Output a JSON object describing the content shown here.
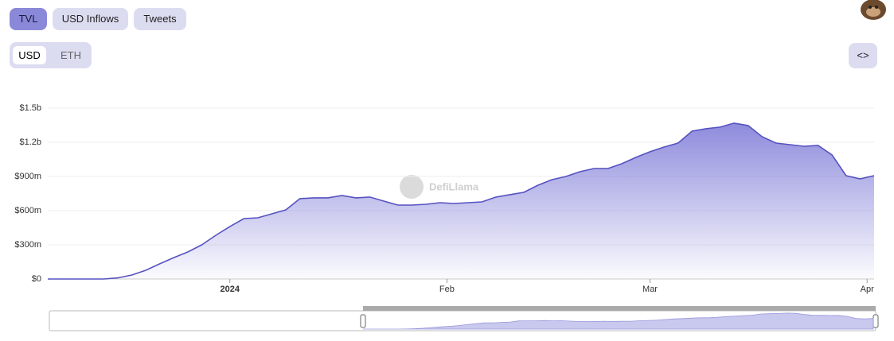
{
  "buttons": [
    "TVL",
    "USD Inflows",
    "Tweets"
  ],
  "currency": [
    "USD",
    "ETH"
  ],
  "watermark": "DefiLlama",
  "chart_data": {
    "type": "area",
    "color": "#5652c0",
    "x": [
      0,
      2,
      4,
      6,
      8,
      10,
      12,
      14,
      16,
      18,
      20,
      22,
      24,
      26,
      28,
      30,
      32,
      34,
      36,
      38,
      40,
      42,
      44,
      46,
      48,
      50,
      52,
      54,
      56,
      58,
      60,
      62,
      64,
      66,
      68,
      70,
      72,
      74,
      76,
      78,
      80,
      82,
      84,
      86,
      88,
      90,
      92,
      94,
      96,
      98,
      100,
      102,
      104,
      106,
      108,
      110,
      112,
      114,
      116,
      118
    ],
    "values": [
      0,
      0,
      0,
      0,
      0,
      10000000,
      35000000,
      77000000,
      133000000,
      188000000,
      237000000,
      300000000,
      384000000,
      460000000,
      530000000,
      537000000,
      572000000,
      607000000,
      705000000,
      712000000,
      712000000,
      733000000,
      712000000,
      719000000,
      684000000,
      649000000,
      649000000,
      656000000,
      670000000,
      663000000,
      670000000,
      677000000,
      719000000,
      740000000,
      761000000,
      823000000,
      872000000,
      900000000,
      942000000,
      970000000,
      970000000,
      1012000000,
      1068000000,
      1117000000,
      1158000000,
      1193000000,
      1298000000,
      1319000000,
      1333000000,
      1368000000,
      1347000000,
      1249000000,
      1193000000,
      1179000000,
      1165000000,
      1172000000,
      1089000000,
      907000000,
      879000000,
      907000000
    ],
    "xlim": [
      0,
      118
    ],
    "xticks": [
      {
        "value": 26,
        "label": "2024"
      },
      {
        "value": 57,
        "label": "Feb"
      },
      {
        "value": 86,
        "label": "Mar"
      },
      {
        "value": 117,
        "label": "Apr"
      }
    ],
    "ylim": [
      0,
      1500000000
    ],
    "yticks": [
      {
        "value": 0,
        "label": "$0"
      },
      {
        "value": 300000000,
        "label": "$300m"
      },
      {
        "value": 600000000,
        "label": "$600m"
      },
      {
        "value": 900000000,
        "label": "$900m"
      },
      {
        "value": 1200000000,
        "label": "$1.2b"
      },
      {
        "value": 1500000000,
        "label": "$1.5b"
      }
    ],
    "grid": true
  }
}
